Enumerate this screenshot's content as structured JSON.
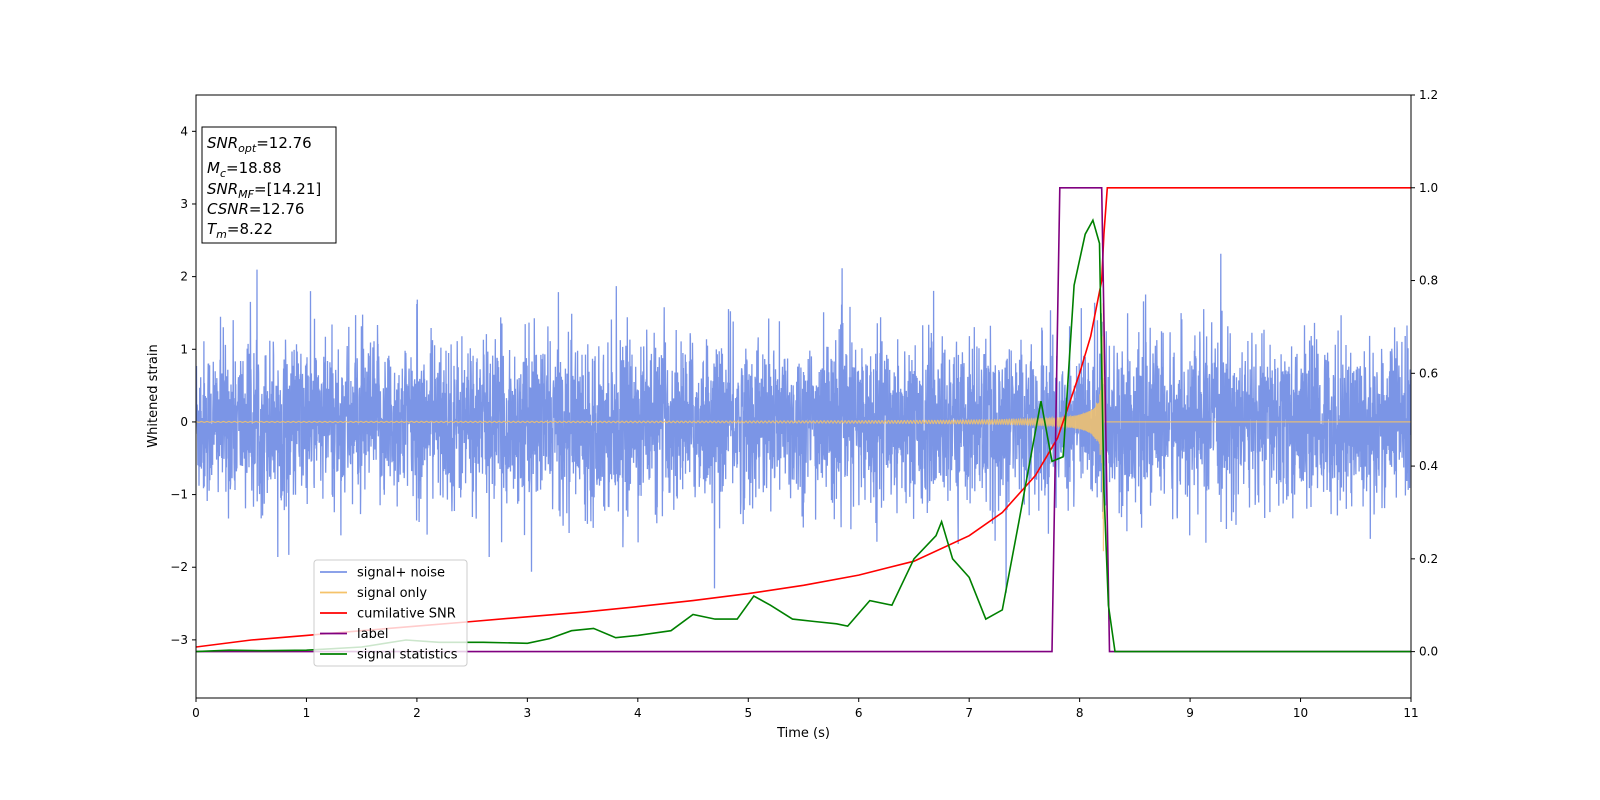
{
  "chart_data": {
    "type": "line",
    "xlabel": "Time (s)",
    "ylabel": "Whitened strain",
    "xlim": [
      0,
      11
    ],
    "ylim": [
      -3.8,
      4.5
    ],
    "y2lim": [
      -0.1,
      1.2
    ],
    "x_ticks": [
      0,
      1,
      2,
      3,
      4,
      5,
      6,
      7,
      8,
      9,
      10,
      11
    ],
    "y_ticks": [
      -3,
      -2,
      -1,
      0,
      1,
      2,
      3,
      4
    ],
    "y2_ticks": [
      0.0,
      0.2,
      0.4,
      0.6,
      0.8,
      1.0,
      1.2
    ],
    "legend_position": "lower-left",
    "annotation": {
      "snr_opt": {
        "base": "SNR",
        "sub": "opt",
        "value": "=12.76"
      },
      "mc": {
        "base": "M",
        "sub": "c",
        "value": "=18.88"
      },
      "snr_mf": {
        "base": "SNR",
        "sub": "MF",
        "value": "=[14.21]"
      },
      "csnr": {
        "base": "CSNR",
        "value": "=12.76"
      },
      "tm": {
        "base": "T",
        "sub": "m",
        "value": "=8.22"
      }
    },
    "series": [
      {
        "name": "signal+ noise",
        "color": "#7b95e6",
        "axis": "left",
        "description_values": {
          "noise_sigma": 0.55,
          "t_start": 0,
          "t_end": 11
        }
      },
      {
        "name": "signal only",
        "color": "#f5c36a",
        "axis": "left",
        "chirp": {
          "t_merge": 8.22,
          "amplitude_max": 1.8,
          "frequency_start_hz": 20
        }
      },
      {
        "name": "cumilative SNR",
        "color": "#ff0000",
        "axis": "right",
        "x": [
          0,
          0.5,
          1,
          1.5,
          2,
          2.5,
          3,
          3.5,
          4,
          4.5,
          5,
          5.5,
          6,
          6.5,
          7,
          7.3,
          7.6,
          7.8,
          8.0,
          8.1,
          8.15,
          8.2,
          8.22,
          8.25,
          11
        ],
        "y": [
          0.01,
          0.025,
          0.035,
          0.045,
          0.055,
          0.065,
          0.075,
          0.085,
          0.097,
          0.11,
          0.125,
          0.143,
          0.165,
          0.195,
          0.25,
          0.3,
          0.38,
          0.46,
          0.6,
          0.68,
          0.74,
          0.8,
          0.9,
          1.0,
          1.0
        ]
      },
      {
        "name": "label",
        "color": "#800080",
        "axis": "right",
        "x": [
          0,
          7.75,
          7.82,
          8.2,
          8.27,
          11
        ],
        "y": [
          0,
          0,
          1,
          1,
          0,
          0
        ]
      },
      {
        "name": "signal statistics",
        "color": "#008000",
        "axis": "right",
        "x": [
          0,
          0.3,
          0.6,
          1,
          1.5,
          1.9,
          2.2,
          2.6,
          3,
          3.2,
          3.4,
          3.6,
          3.8,
          4,
          4.3,
          4.5,
          4.7,
          4.9,
          5.05,
          5.2,
          5.4,
          5.6,
          5.8,
          5.9,
          6.1,
          6.3,
          6.5,
          6.7,
          6.75,
          6.85,
          7.0,
          7.15,
          7.3,
          7.45,
          7.55,
          7.65,
          7.75,
          7.85,
          7.95,
          8.05,
          8.12,
          8.18,
          8.22,
          8.26,
          8.32,
          11
        ],
        "y": [
          0,
          0.003,
          0.002,
          0.003,
          0.01,
          0.025,
          0.02,
          0.02,
          0.018,
          0.028,
          0.045,
          0.05,
          0.03,
          0.035,
          0.045,
          0.08,
          0.07,
          0.07,
          0.12,
          0.1,
          0.07,
          0.065,
          0.06,
          0.055,
          0.11,
          0.1,
          0.2,
          0.25,
          0.28,
          0.2,
          0.16,
          0.07,
          0.09,
          0.28,
          0.41,
          0.54,
          0.41,
          0.42,
          0.79,
          0.9,
          0.93,
          0.88,
          0.35,
          0.1,
          0.0,
          0.0
        ]
      }
    ]
  }
}
